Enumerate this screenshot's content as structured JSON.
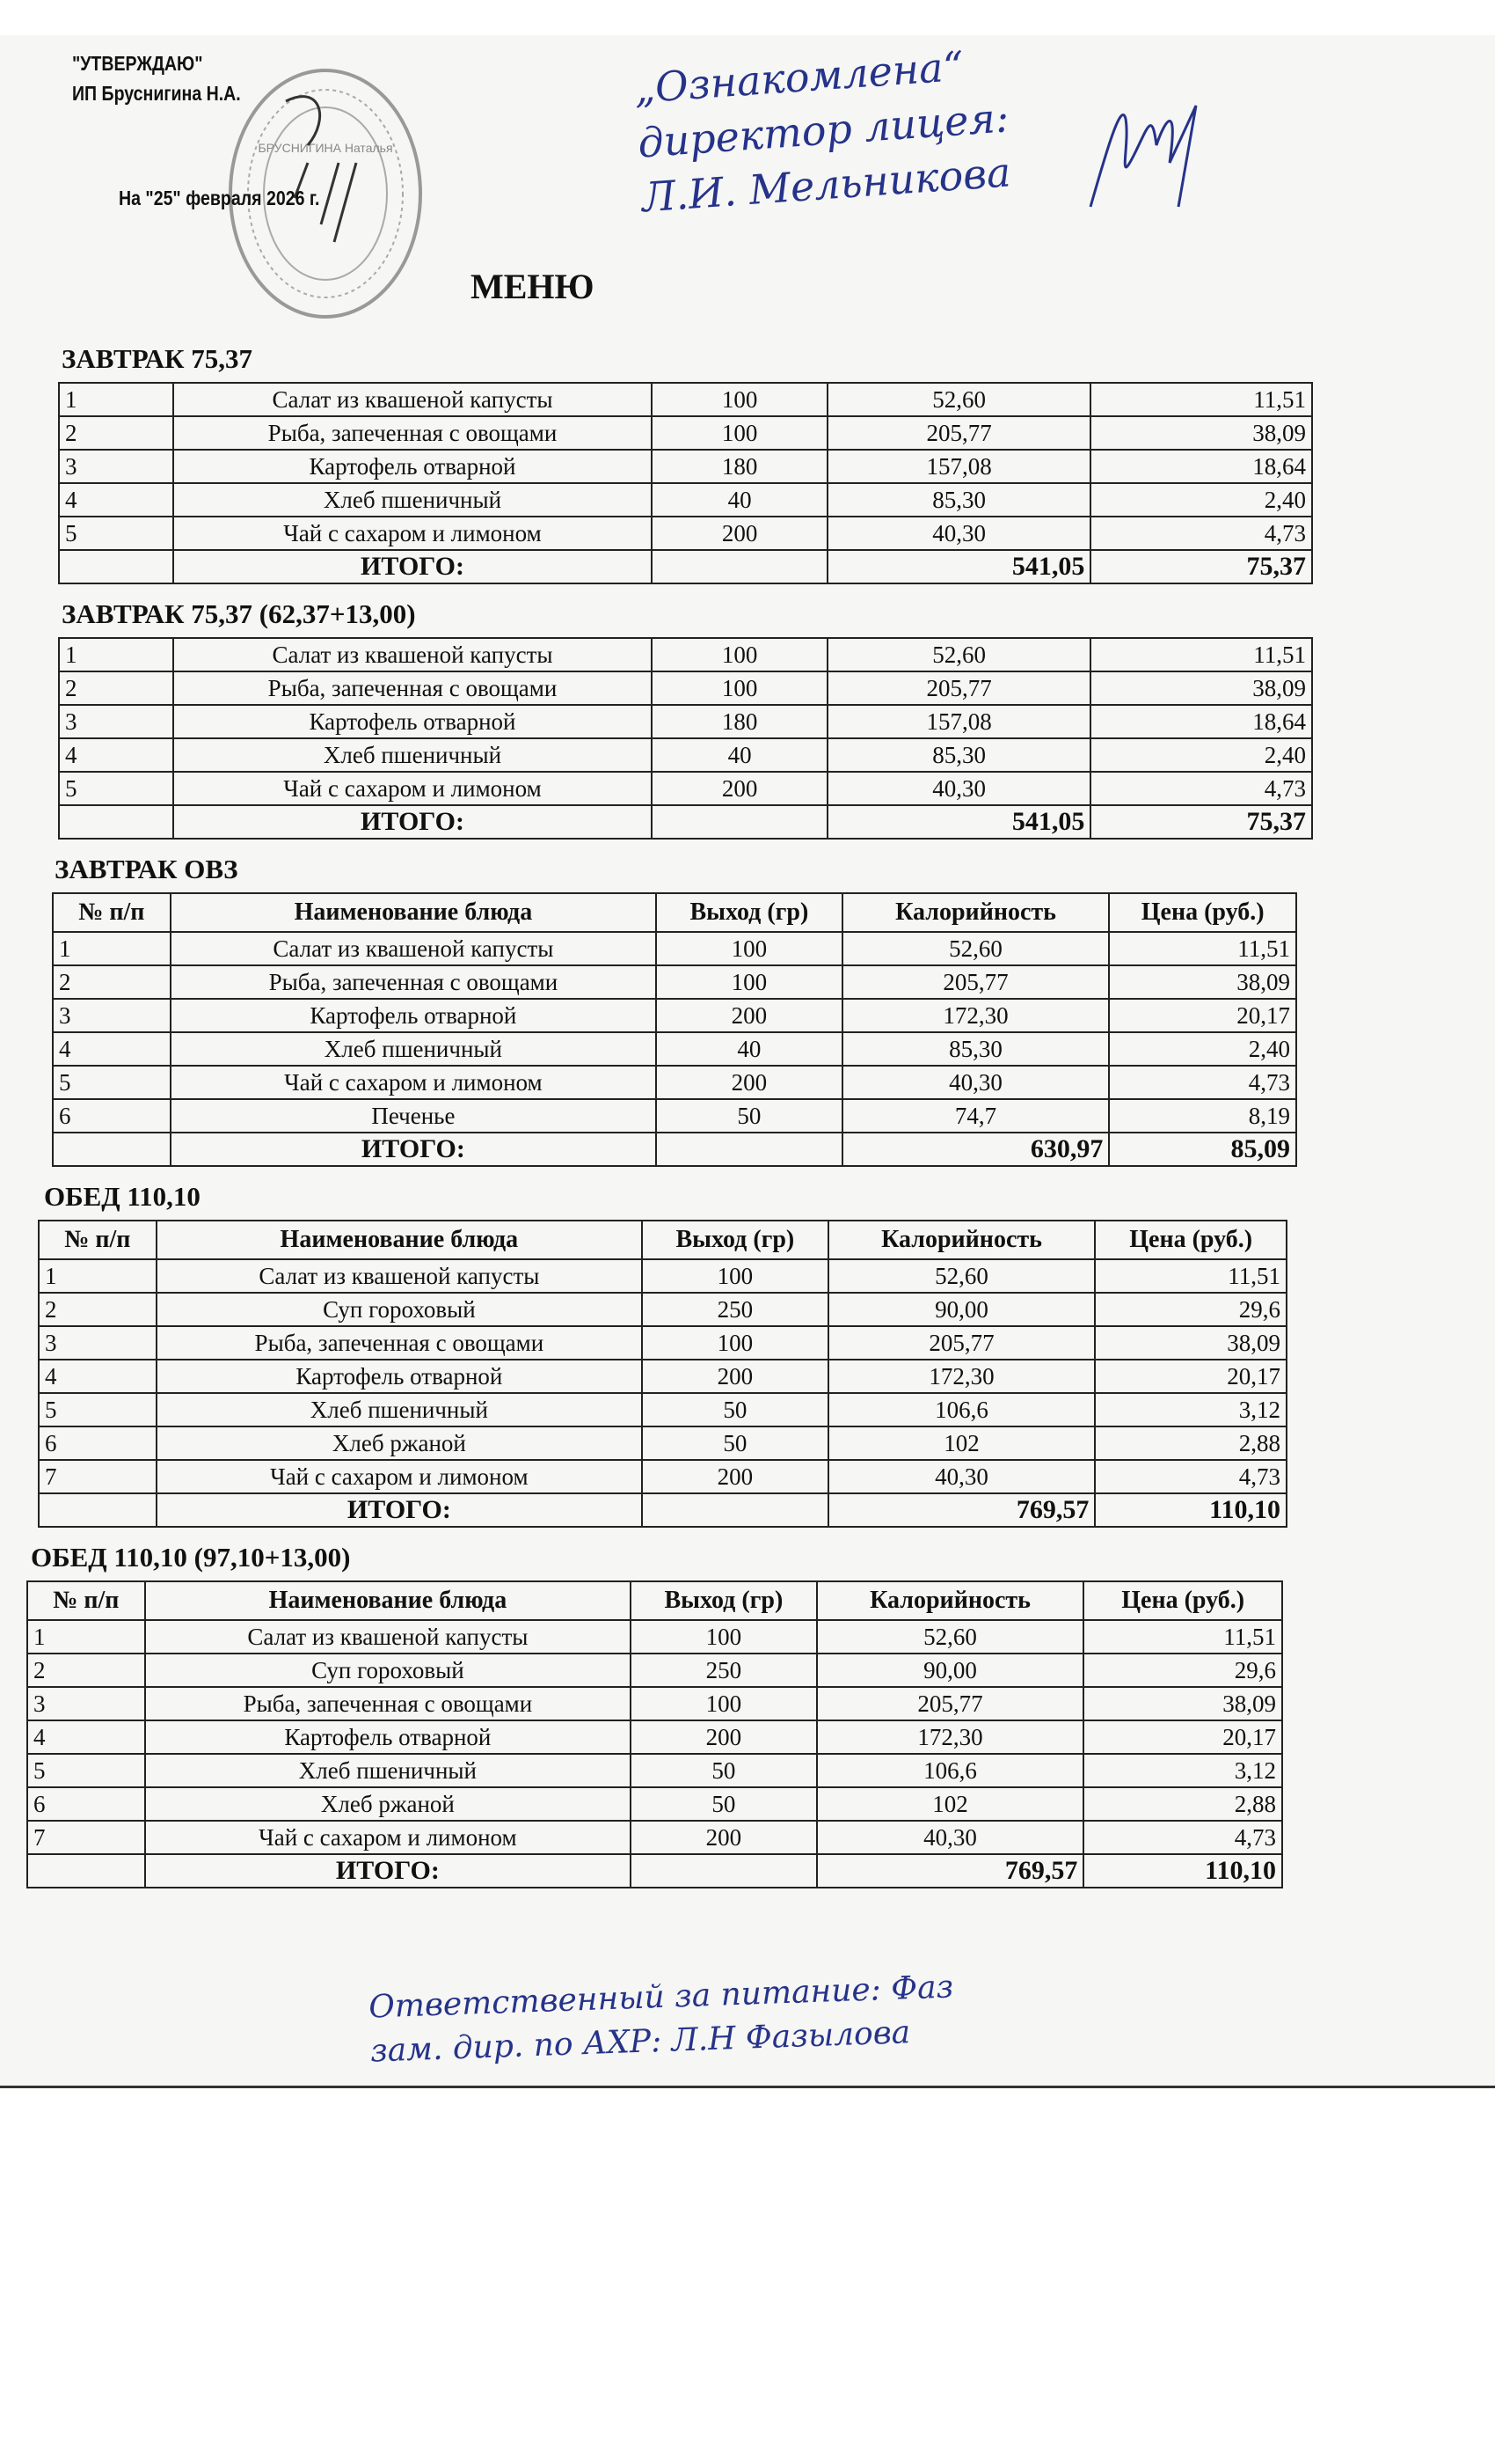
{
  "header": {
    "approve": "\"УТВЕРЖДАЮ\"",
    "approver": "ИП Бруснигина Н.А.",
    "date": "На \"25\" февраля 2026 г.",
    "title": "МЕНЮ"
  },
  "stamp": {
    "text": "БРУСНИГИНА Наталья"
  },
  "handwritten_top": [
    "„Ознакомлена“",
    "директор лицея:",
    "Л.И. Мельникова"
  ],
  "handwritten_bottom": [
    "Ответственный за питание: Фаз",
    "зам. дир. по АХР: Л.Н Фазылова"
  ],
  "columns": [
    "№ п/п",
    "Наименование блюда",
    "Выход (гр)",
    "Калорийность",
    "Цена (руб.)"
  ],
  "sections": [
    {
      "title": "ЗАВТРАК 75,37",
      "show_header": false,
      "rows": [
        [
          "1",
          "Салат из квашеной капусты",
          "100",
          "52,60",
          "11,51"
        ],
        [
          "2",
          "Рыба, запеченная с овощами",
          "100",
          "205,77",
          "38,09"
        ],
        [
          "3",
          "Картофель отварной",
          "180",
          "157,08",
          "18,64"
        ],
        [
          "4",
          "Хлеб пшеничный",
          "40",
          "85,30",
          "2,40"
        ],
        [
          "5",
          "Чай с сахаром и лимоном",
          "200",
          "40,30",
          "4,73"
        ]
      ],
      "total": {
        "label": "ИТОГО:",
        "calories": "541,05",
        "price": "75,37"
      }
    },
    {
      "title": "ЗАВТРАК 75,37 (62,37+13,00)",
      "show_header": false,
      "rows": [
        [
          "1",
          "Салат из квашеной капусты",
          "100",
          "52,60",
          "11,51"
        ],
        [
          "2",
          "Рыба, запеченная с овощами",
          "100",
          "205,77",
          "38,09"
        ],
        [
          "3",
          "Картофель отварной",
          "180",
          "157,08",
          "18,64"
        ],
        [
          "4",
          "Хлеб пшеничный",
          "40",
          "85,30",
          "2,40"
        ],
        [
          "5",
          "Чай с сахаром и лимоном",
          "200",
          "40,30",
          "4,73"
        ]
      ],
      "total": {
        "label": "ИТОГО:",
        "calories": "541,05",
        "price": "75,37"
      }
    },
    {
      "title": "ЗАВТРАК ОВЗ",
      "show_header": true,
      "rows": [
        [
          "1",
          "Салат из квашеной капусты",
          "100",
          "52,60",
          "11,51"
        ],
        [
          "2",
          "Рыба, запеченная с овощами",
          "100",
          "205,77",
          "38,09"
        ],
        [
          "3",
          "Картофель отварной",
          "200",
          "172,30",
          "20,17"
        ],
        [
          "4",
          "Хлеб пшеничный",
          "40",
          "85,30",
          "2,40"
        ],
        [
          "5",
          "Чай с сахаром и лимоном",
          "200",
          "40,30",
          "4,73"
        ],
        [
          "6",
          "Печенье",
          "50",
          "74,7",
          "8,19"
        ]
      ],
      "total": {
        "label": "ИТОГО:",
        "calories": "630,97",
        "price": "85,09"
      }
    },
    {
      "title": "ОБЕД 110,10",
      "show_header": true,
      "rows": [
        [
          "1",
          "Салат из квашеной капусты",
          "100",
          "52,60",
          "11,51"
        ],
        [
          "2",
          "Суп гороховый",
          "250",
          "90,00",
          "29,6"
        ],
        [
          "3",
          "Рыба, запеченная с овощами",
          "100",
          "205,77",
          "38,09"
        ],
        [
          "4",
          "Картофель отварной",
          "200",
          "172,30",
          "20,17"
        ],
        [
          "5",
          "Хлеб пшеничный",
          "50",
          "106,6",
          "3,12"
        ],
        [
          "6",
          "Хлеб ржаной",
          "50",
          "102",
          "2,88"
        ],
        [
          "7",
          "Чай с сахаром и лимоном",
          "200",
          "40,30",
          "4,73"
        ]
      ],
      "total": {
        "label": "ИТОГО:",
        "calories": "769,57",
        "price": "110,10"
      }
    },
    {
      "title": "ОБЕД 110,10 (97,10+13,00)",
      "show_header": true,
      "rows": [
        [
          "1",
          "Салат из квашеной капусты",
          "100",
          "52,60",
          "11,51"
        ],
        [
          "2",
          "Суп гороховый",
          "250",
          "90,00",
          "29,6"
        ],
        [
          "3",
          "Рыба, запеченная с овощами",
          "100",
          "205,77",
          "38,09"
        ],
        [
          "4",
          "Картофель отварной",
          "200",
          "172,30",
          "20,17"
        ],
        [
          "5",
          "Хлеб пшеничный",
          "50",
          "106,6",
          "3,12"
        ],
        [
          "6",
          "Хлеб ржаной",
          "50",
          "102",
          "2,88"
        ],
        [
          "7",
          "Чай с сахаром и лимоном",
          "200",
          "40,30",
          "4,73"
        ]
      ],
      "total": {
        "label": "ИТОГО:",
        "calories": "769,57",
        "price": "110,10"
      }
    }
  ]
}
